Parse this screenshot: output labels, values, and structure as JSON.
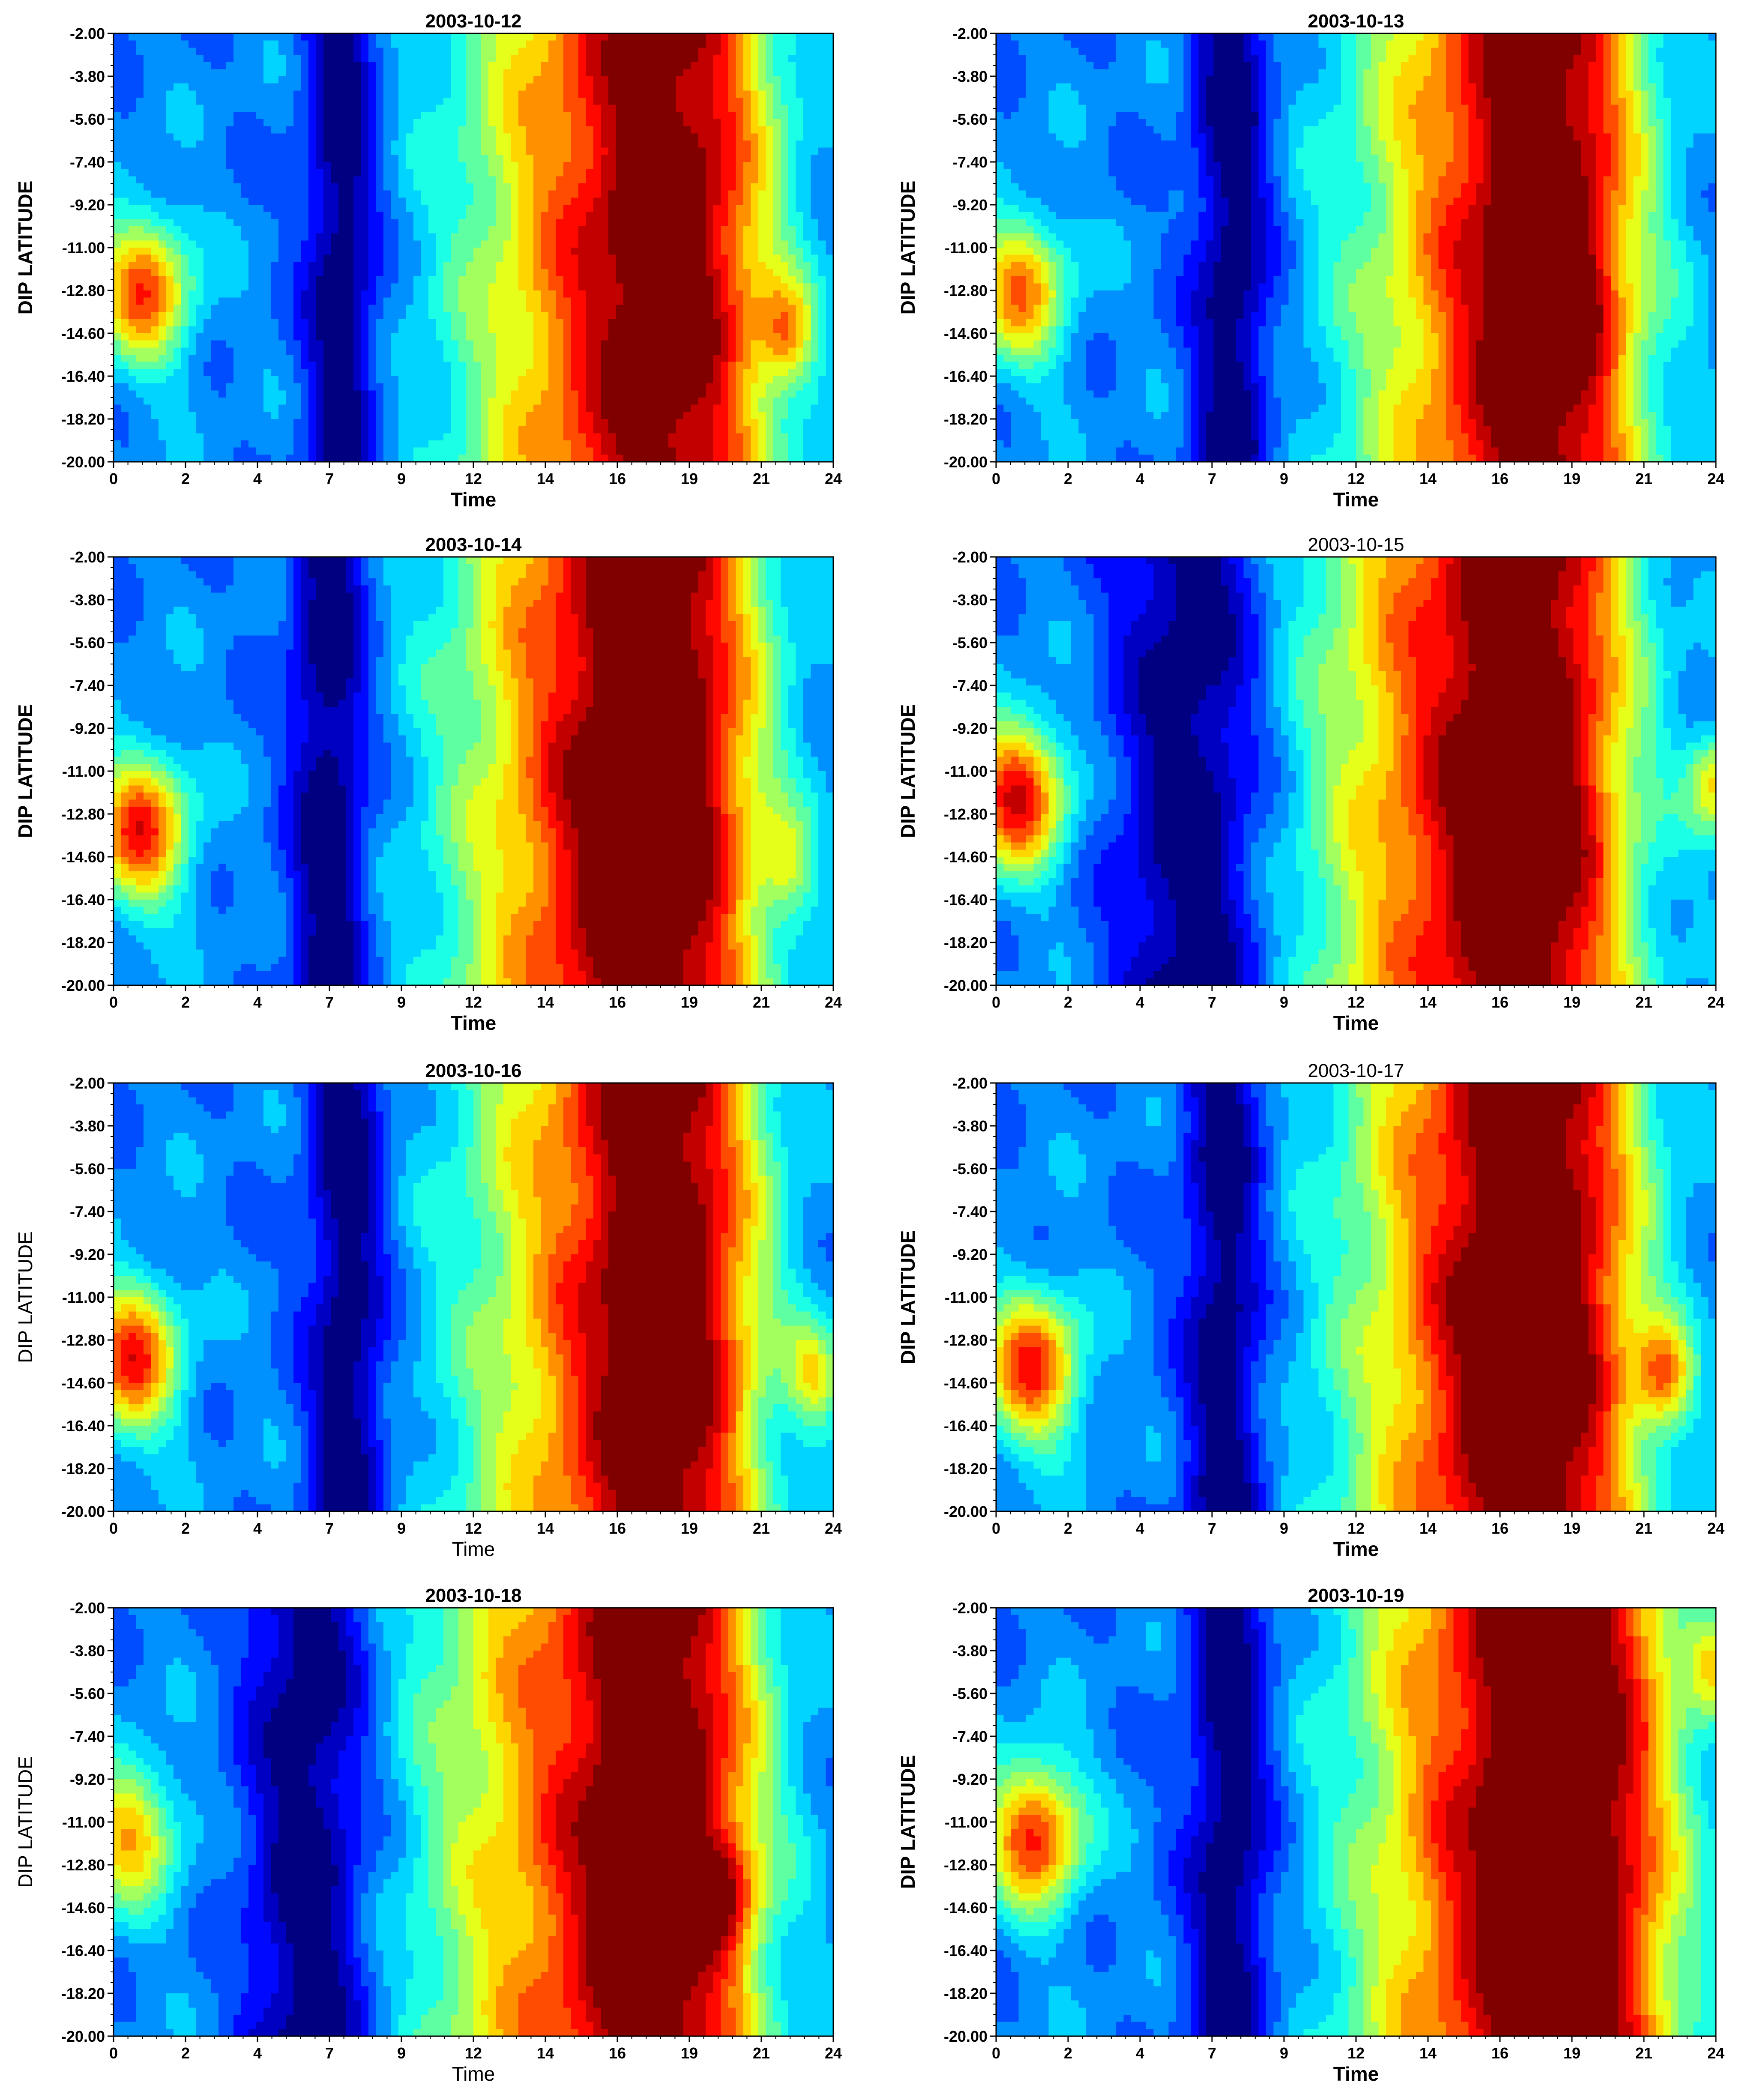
{
  "figure": {
    "colormap": "jet",
    "chart_type": "filled contour (heatmap)",
    "colorbar": "none shown"
  },
  "chart_data": [
    {
      "type": "heatmap",
      "title": "2003-10-12",
      "title_weight": "bold",
      "xlabel": "Time",
      "xlabel_weight": "bold",
      "ylabel": "DIP LATITUDE",
      "ylabel_weight": "bold",
      "xticks": [
        "0",
        "2",
        "4",
        "7",
        "9",
        "12",
        "14",
        "16",
        "19",
        "21",
        "24"
      ],
      "yticks": [
        "-2.00",
        "-3.80",
        "-5.60",
        "-7.40",
        "-9.20",
        "-11.00",
        "-12.80",
        "-14.60",
        "-16.40",
        "-18.20",
        "-20.00"
      ],
      "xlim": [
        0,
        24
      ],
      "ylim": [
        -20,
        -2
      ],
      "features": {
        "trough": {
          "center": 7.6,
          "width": 1.2
        },
        "peak": {
          "center": 18.5,
          "width": 3.2,
          "amp": 0.82
        },
        "blob_center_time": 1.0,
        "blob_center_lat": -12.8,
        "blob_amp": 0.5,
        "extra_blob": {
          "time": 22.5,
          "lat": -14.6,
          "amp": 0.3
        }
      }
    },
    {
      "type": "heatmap",
      "title": "2003-10-13",
      "title_weight": "bold",
      "xlabel": "Time",
      "xlabel_weight": "bold",
      "ylabel": "DIP LATITUDE",
      "ylabel_weight": "bold",
      "xticks": [
        "0",
        "2",
        "4",
        "7",
        "9",
        "12",
        "14",
        "16",
        "19",
        "21",
        "24"
      ],
      "yticks": [
        "-2.00",
        "-3.80",
        "-5.60",
        "-7.40",
        "-9.20",
        "-11.00",
        "-12.80",
        "-14.60",
        "-16.40",
        "-18.20",
        "-20.00"
      ],
      "xlim": [
        0,
        24
      ],
      "ylim": [
        -20,
        -2
      ],
      "features": {
        "trough": {
          "center": 7.9,
          "width": 1.3
        },
        "peak": {
          "center": 18.3,
          "width": 3.0,
          "amp": 0.9
        },
        "blob_center_time": 0.8,
        "blob_center_lat": -12.8,
        "blob_amp": 0.45,
        "extra_blob": {
          "time": 19.2,
          "lat": -13.0,
          "amp": 0.15
        }
      }
    },
    {
      "type": "heatmap",
      "title": "2003-10-14",
      "title_weight": "bold",
      "xlabel": "Time",
      "xlabel_weight": "bold",
      "ylabel": "DIP LATITUDE",
      "ylabel_weight": "bold",
      "xticks": [
        "0",
        "2",
        "4",
        "7",
        "9",
        "12",
        "14",
        "16",
        "19",
        "21",
        "24"
      ],
      "yticks": [
        "-2.00",
        "-3.80",
        "-5.60",
        "-7.40",
        "-9.20",
        "-11.00",
        "-12.80",
        "-14.60",
        "-16.40",
        "-18.20",
        "-20.00"
      ],
      "xlim": [
        0,
        24
      ],
      "ylim": [
        -20,
        -2
      ],
      "features": {
        "trough": {
          "center": 7.2,
          "width": 1.3
        },
        "peak": {
          "center": 18.0,
          "width": 3.3,
          "amp": 1.0
        },
        "blob_center_time": 0.9,
        "blob_center_lat": -13.5,
        "blob_amp": 0.55,
        "extra_blob": {
          "time": 22.5,
          "lat": -15.0,
          "amp": 0.2
        }
      }
    },
    {
      "type": "heatmap",
      "title": "2003-10-15",
      "title_weight": "normal",
      "xlabel": "Time",
      "xlabel_weight": "bold",
      "ylabel": "DIP LATITUDE",
      "ylabel_weight": "bold",
      "xticks": [
        "0",
        "2",
        "4",
        "7",
        "9",
        "12",
        "14",
        "16",
        "19",
        "21",
        "24"
      ],
      "yticks": [
        "-2.00",
        "-3.80",
        "-5.60",
        "-7.40",
        "-9.20",
        "-11.00",
        "-12.80",
        "-14.60",
        "-16.40",
        "-18.20",
        "-20.00"
      ],
      "xlim": [
        0,
        24
      ],
      "ylim": [
        -20,
        -2
      ],
      "features": {
        "trough": {
          "center": 6.5,
          "width": 2.4
        },
        "peak": {
          "center": 17.6,
          "width": 3.3,
          "amp": 0.95
        },
        "blob_center_time": 0.7,
        "blob_center_lat": -12.0,
        "blob_amp": 0.6,
        "extra_blob": {
          "time": 24.0,
          "lat": -11.5,
          "amp": 0.35
        }
      }
    },
    {
      "type": "heatmap",
      "title": "2003-10-16",
      "title_weight": "bold",
      "xlabel": "Time",
      "xlabel_weight": "normal",
      "ylabel": "DIP LATITUDE",
      "ylabel_weight": "normal",
      "xticks": [
        "0",
        "2",
        "4",
        "7",
        "9",
        "12",
        "14",
        "16",
        "19",
        "21",
        "24"
      ],
      "yticks": [
        "-2.00",
        "-3.80",
        "-5.60",
        "-7.40",
        "-9.20",
        "-11.00",
        "-12.80",
        "-14.60",
        "-16.40",
        "-18.20",
        "-20.00"
      ],
      "xlim": [
        0,
        24
      ],
      "ylim": [
        -20,
        -2
      ],
      "features": {
        "trough": {
          "center": 7.8,
          "width": 1.3
        },
        "peak": {
          "center": 18.4,
          "width": 2.9,
          "amp": 0.92
        },
        "blob_center_time": 0.6,
        "blob_center_lat": -13.6,
        "blob_amp": 0.55,
        "extra_blob": {
          "time": 23.4,
          "lat": -14.3,
          "amp": 0.3
        }
      }
    },
    {
      "type": "heatmap",
      "title": "2003-10-17",
      "title_weight": "normal",
      "xlabel": "Time",
      "xlabel_weight": "bold",
      "ylabel": "DIP LATITUDE",
      "ylabel_weight": "bold",
      "xticks": [
        "0",
        "2",
        "4",
        "7",
        "9",
        "12",
        "14",
        "16",
        "19",
        "21",
        "24"
      ],
      "yticks": [
        "-2.00",
        "-3.80",
        "-5.60",
        "-7.40",
        "-9.20",
        "-11.00",
        "-12.80",
        "-14.60",
        "-16.40",
        "-18.20",
        "-20.00"
      ],
      "xlim": [
        0,
        24
      ],
      "ylim": [
        -20,
        -2
      ],
      "features": {
        "trough": {
          "center": 7.6,
          "width": 1.3
        },
        "peak": {
          "center": 17.9,
          "width": 3.3,
          "amp": 0.98
        },
        "blob_center_time": 1.2,
        "blob_center_lat": -14.0,
        "blob_amp": 0.55,
        "extra_blob": {
          "time": 22.3,
          "lat": -14.3,
          "amp": 0.35
        }
      }
    },
    {
      "type": "heatmap",
      "title": "2003-10-18",
      "title_weight": "bold",
      "xlabel": "Time",
      "xlabel_weight": "normal",
      "ylabel": "DIP LATITUDE",
      "ylabel_weight": "normal",
      "xticks": [
        "0",
        "2",
        "4",
        "7",
        "9",
        "12",
        "14",
        "16",
        "19",
        "21",
        "24"
      ],
      "yticks": [
        "-2.00",
        "-3.80",
        "-5.60",
        "-7.40",
        "-9.20",
        "-11.00",
        "-12.80",
        "-14.60",
        "-16.40",
        "-18.20",
        "-20.00"
      ],
      "xlim": [
        0,
        24
      ],
      "ylim": [
        -20,
        -2
      ],
      "features": {
        "trough": {
          "center": 6.5,
          "width": 2.0
        },
        "peak": {
          "center": 18.2,
          "width": 3.1,
          "amp": 0.95
        },
        "blob_center_time": 0.5,
        "blob_center_lat": -11.5,
        "blob_amp": 0.4,
        "extra_blob": {
          "time": 20.5,
          "lat": -14.0,
          "amp": 0.2
        }
      }
    },
    {
      "type": "heatmap",
      "title": "2003-10-19",
      "title_weight": "bold",
      "xlabel": "Time",
      "xlabel_weight": "bold",
      "ylabel": "DIP LATITUDE",
      "ylabel_weight": "bold",
      "xticks": [
        "0",
        "2",
        "4",
        "7",
        "9",
        "12",
        "14",
        "16",
        "19",
        "21",
        "24"
      ],
      "yticks": [
        "-2.00",
        "-3.80",
        "-5.60",
        "-7.40",
        "-9.20",
        "-11.00",
        "-12.80",
        "-14.60",
        "-16.40",
        "-18.20",
        "-20.00"
      ],
      "xlim": [
        0,
        24
      ],
      "ylim": [
        -20,
        -2
      ],
      "features": {
        "trough": {
          "center": 7.8,
          "width": 1.4
        },
        "peak": {
          "center": 18.8,
          "width": 3.6,
          "amp": 1.0
        },
        "blob_center_time": 1.3,
        "blob_center_lat": -11.5,
        "blob_amp": 0.55,
        "extra_blob": {
          "time": 24.0,
          "lat": -4.5,
          "amp": 0.25
        }
      }
    }
  ]
}
